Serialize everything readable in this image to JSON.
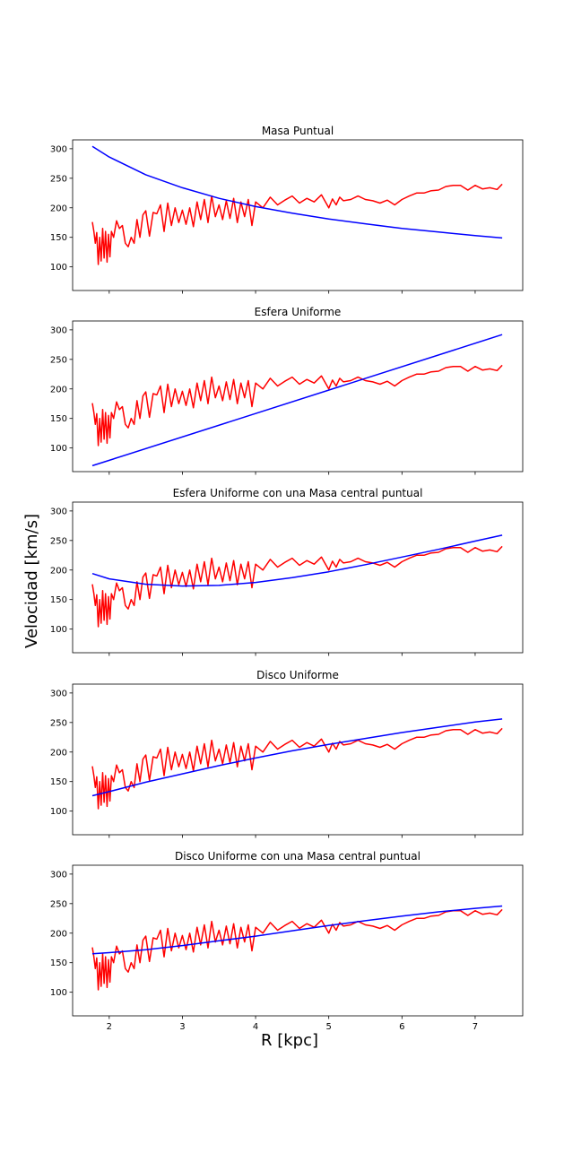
{
  "figure": {
    "xlabel": "R [kpc]",
    "ylabel": "Velocidad [km/s]"
  },
  "chart_data": [
    {
      "type": "line",
      "title": "Masa Puntual",
      "xlim": [
        1.5,
        7.65
      ],
      "ylim": [
        60,
        315
      ],
      "yticks": [
        100,
        150,
        200,
        250,
        300
      ],
      "xticks": [
        2,
        3,
        4,
        5,
        6,
        7
      ],
      "show_xtick_labels": false,
      "series": [
        {
          "color": "#ff0000",
          "source": "observed"
        },
        {
          "color": "#0000ff",
          "model": "point",
          "x": [
            1.77,
            2.0,
            2.5,
            3.0,
            3.5,
            4.0,
            4.5,
            5.0,
            5.5,
            6.0,
            6.5,
            7.0,
            7.37
          ],
          "y": [
            304,
            286,
            256,
            234,
            216,
            202,
            191,
            181,
            173,
            165,
            159,
            153,
            149
          ]
        }
      ]
    },
    {
      "type": "line",
      "title": "Esfera Uniforme",
      "xlim": [
        1.5,
        7.65
      ],
      "ylim": [
        60,
        315
      ],
      "yticks": [
        100,
        150,
        200,
        250,
        300
      ],
      "xticks": [
        2,
        3,
        4,
        5,
        6,
        7
      ],
      "show_xtick_labels": false,
      "series": [
        {
          "color": "#ff0000",
          "source": "observed"
        },
        {
          "color": "#0000ff",
          "model": "sphere",
          "x": [
            1.77,
            7.37
          ],
          "y": [
            70,
            292
          ]
        }
      ]
    },
    {
      "type": "line",
      "title": "Esfera Uniforme con una Masa central puntual",
      "xlim": [
        1.5,
        7.65
      ],
      "ylim": [
        60,
        315
      ],
      "yticks": [
        100,
        150,
        200,
        250,
        300
      ],
      "xticks": [
        2,
        3,
        4,
        5,
        6,
        7
      ],
      "show_xtick_labels": false,
      "series": [
        {
          "color": "#ff0000",
          "source": "observed"
        },
        {
          "color": "#0000ff",
          "model": "sphere_point",
          "x": [
            1.77,
            2.0,
            2.5,
            3.0,
            3.5,
            4.0,
            4.5,
            5.0,
            5.5,
            6.0,
            6.5,
            7.0,
            7.37
          ],
          "y": [
            194,
            185,
            176,
            173,
            174,
            179,
            187,
            197,
            209,
            222,
            235,
            249,
            259
          ]
        }
      ]
    },
    {
      "type": "line",
      "title": "Disco Uniforme",
      "xlim": [
        1.5,
        7.65
      ],
      "ylim": [
        60,
        315
      ],
      "yticks": [
        100,
        150,
        200,
        250,
        300
      ],
      "xticks": [
        2,
        3,
        4,
        5,
        6,
        7
      ],
      "show_xtick_labels": false,
      "series": [
        {
          "color": "#ff0000",
          "source": "observed"
        },
        {
          "color": "#0000ff",
          "model": "disk",
          "x": [
            1.77,
            2.0,
            2.5,
            3.0,
            3.5,
            4.0,
            4.5,
            5.0,
            5.5,
            6.0,
            6.5,
            7.0,
            7.37
          ],
          "y": [
            126,
            133,
            149,
            163,
            177,
            190,
            202,
            213,
            223,
            233,
            242,
            251,
            256
          ]
        }
      ]
    },
    {
      "type": "line",
      "title": "Disco Uniforme con una Masa central puntual",
      "xlim": [
        1.5,
        7.65
      ],
      "ylim": [
        60,
        315
      ],
      "yticks": [
        100,
        150,
        200,
        250,
        300
      ],
      "xticks": [
        2,
        3,
        4,
        5,
        6,
        7
      ],
      "show_xtick_labels": true,
      "series": [
        {
          "color": "#ff0000",
          "source": "observed"
        },
        {
          "color": "#0000ff",
          "model": "disk_point",
          "x": [
            1.77,
            2.0,
            2.5,
            3.0,
            3.5,
            4.0,
            4.5,
            5.0,
            5.5,
            6.0,
            6.5,
            7.0,
            7.37
          ],
          "y": [
            165,
            167,
            172,
            179,
            187,
            195,
            204,
            213,
            221,
            229,
            236,
            242,
            246
          ]
        }
      ]
    }
  ],
  "observed_curve": {
    "x": [
      1.77,
      1.79,
      1.81,
      1.83,
      1.85,
      1.87,
      1.89,
      1.91,
      1.93,
      1.95,
      1.97,
      1.99,
      2.01,
      2.03,
      2.06,
      2.1,
      2.14,
      2.18,
      2.22,
      2.26,
      2.3,
      2.34,
      2.38,
      2.42,
      2.46,
      2.5,
      2.55,
      2.6,
      2.65,
      2.7,
      2.75,
      2.8,
      2.85,
      2.9,
      2.95,
      3.0,
      3.05,
      3.1,
      3.15,
      3.2,
      3.25,
      3.3,
      3.35,
      3.4,
      3.45,
      3.5,
      3.55,
      3.6,
      3.65,
      3.7,
      3.75,
      3.8,
      3.85,
      3.9,
      3.95,
      4.0,
      4.1,
      4.2,
      4.3,
      4.4,
      4.5,
      4.6,
      4.7,
      4.8,
      4.9,
      5.0,
      5.05,
      5.1,
      5.15,
      5.2,
      5.3,
      5.4,
      5.5,
      5.6,
      5.7,
      5.8,
      5.9,
      6.0,
      6.1,
      6.2,
      6.3,
      6.4,
      6.5,
      6.6,
      6.7,
      6.8,
      6.9,
      7.0,
      7.1,
      7.2,
      7.3,
      7.37
    ],
    "y": [
      176,
      160,
      140,
      158,
      104,
      150,
      110,
      165,
      115,
      160,
      108,
      155,
      117,
      160,
      150,
      178,
      165,
      170,
      140,
      134,
      150,
      140,
      180,
      150,
      188,
      195,
      152,
      192,
      190,
      205,
      160,
      208,
      170,
      200,
      175,
      196,
      172,
      200,
      168,
      210,
      180,
      214,
      175,
      220,
      185,
      205,
      180,
      212,
      182,
      216,
      175,
      210,
      185,
      214,
      170,
      210,
      200,
      218,
      205,
      213,
      220,
      208,
      216,
      210,
      222,
      200,
      215,
      205,
      218,
      212,
      214,
      220,
      214,
      212,
      208,
      213,
      205,
      214,
      220,
      225,
      225,
      229,
      230,
      236,
      238,
      238,
      230,
      238,
      232,
      234,
      231,
      240
    ]
  }
}
